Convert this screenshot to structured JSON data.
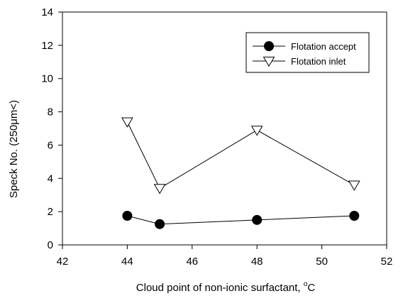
{
  "chart_data": {
    "type": "line",
    "xlabel_main": "Cloud point of non-ionic surfactant, ",
    "xlabel_sup": "o",
    "xlabel_unit": "C",
    "ylabel": "Speck No. (250μm<)",
    "xlim": [
      42,
      52
    ],
    "ylim": [
      0,
      14
    ],
    "xticks": [
      42,
      44,
      46,
      48,
      50,
      52
    ],
    "yticks": [
      0,
      2,
      4,
      6,
      8,
      10,
      12,
      14
    ],
    "grid": false,
    "legend_position": "top-right",
    "series": [
      {
        "name": "Flotation accept",
        "marker": "filled-circle",
        "color": "#000000",
        "x": [
          44,
          45,
          48,
          51
        ],
        "y": [
          1.75,
          1.25,
          1.5,
          1.75
        ]
      },
      {
        "name": "Flotation inlet",
        "marker": "open-triangle-down",
        "color": "#000000",
        "x": [
          44,
          45,
          48,
          51
        ],
        "y": [
          7.4,
          3.4,
          6.9,
          3.6
        ]
      }
    ]
  }
}
